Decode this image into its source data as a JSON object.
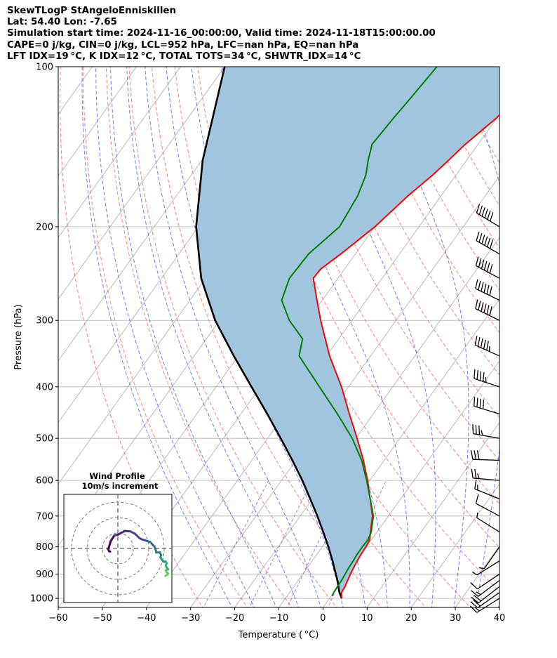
{
  "header": {
    "title": "SkewTLogP StAngeloEnniskillen",
    "location": "Lat: 54.40   Lon: -7.65",
    "times": "Simulation start time: 2024-11-16_00:00:00, Valid time: 2024-11-18T15:00:00.00",
    "parcel": "CAPE=0 j/kg, CIN=0 j/kg, LCL=952 hPa, LFC=nan hPa, EQ=nan hPa",
    "indices": "LFT IDX=19 °C, K IDX=12 °C, TOTAL TOTS=34 °C, SHWTR_IDX=14 °C"
  },
  "colors": {
    "temperature": "#ff0000",
    "dewpoint": "#008000",
    "parcel": "#000000",
    "cape_fill": "#a2c5df",
    "isotherm": "#aaaaaa",
    "dry_adiabat": "#ff5555",
    "moist_adiabat": "#3344ff",
    "mixing_ratio": "#9933cc"
  },
  "chart_data": [
    {
      "type": "line",
      "subtype": "skew-T log-P",
      "xlabel": "Temperature ( °C)",
      "ylabel": "Pressure (hPa)",
      "xlim": [
        -60,
        40
      ],
      "ylim": [
        1040,
        100
      ],
      "y_scale": "log",
      "grid": true,
      "x_ticks": [
        -60,
        -50,
        -40,
        -30,
        -20,
        -10,
        0,
        10,
        20,
        30,
        40
      ],
      "x_tick_labels": [
        "−60",
        "−50",
        "−40",
        "−30",
        "−20",
        "−10",
        "0",
        "10",
        "20",
        "30",
        "40"
      ],
      "y_ticks": [
        100,
        200,
        300,
        400,
        500,
        600,
        700,
        800,
        900,
        1000
      ],
      "y_tick_labels": [
        "100",
        "200",
        "300",
        "400",
        "500",
        "600",
        "700",
        "800",
        "900",
        "1000"
      ],
      "series": [
        {
          "key": "temperature",
          "points": [
            [
              1000,
              2.8
            ],
            [
              975,
              1.8
            ],
            [
              950,
              1.6
            ],
            [
              925,
              1.2
            ],
            [
              900,
              0.8
            ],
            [
              875,
              0.5
            ],
            [
              850,
              0.2
            ],
            [
              825,
              0
            ],
            [
              800,
              -0.1
            ],
            [
              775,
              -0.4
            ],
            [
              750,
              -1.5
            ],
            [
              700,
              -3.6
            ],
            [
              650,
              -6.9
            ],
            [
              600,
              -10.5
            ],
            [
              550,
              -14.7
            ],
            [
              500,
              -19.7
            ],
            [
              450,
              -25.4
            ],
            [
              400,
              -31.6
            ],
            [
              350,
              -39.3
            ],
            [
              300,
              -47.1
            ],
            [
              275,
              -51.2
            ],
            [
              250,
              -55.6
            ],
            [
              240,
              -55.4
            ],
            [
              225,
              -53.3
            ],
            [
              200,
              -50.0
            ],
            [
              175,
              -47.5
            ],
            [
              160,
              -45.3
            ],
            [
              150,
              -44.1
            ],
            [
              140,
              -42.9
            ],
            [
              125,
              -40.1
            ],
            [
              115,
              -38.9
            ],
            [
              100,
              -36.7
            ]
          ]
        },
        {
          "key": "dewpoint",
          "points": [
            [
              990,
              0.2
            ],
            [
              975,
              0
            ],
            [
              950,
              -0.1
            ],
            [
              925,
              -0.2
            ],
            [
              900,
              -0.4
            ],
            [
              875,
              -0.6
            ],
            [
              850,
              -0.7
            ],
            [
              825,
              -0.9
            ],
            [
              800,
              -0.9
            ],
            [
              775,
              -0.8
            ],
            [
              750,
              -1.3
            ],
            [
              700,
              -3.4
            ],
            [
              650,
              -6.9
            ],
            [
              600,
              -10.7
            ],
            [
              550,
              -15.1
            ],
            [
              500,
              -20.8
            ],
            [
              450,
              -28.1
            ],
            [
              400,
              -36.6
            ],
            [
              350,
              -46.2
            ],
            [
              325,
              -48.2
            ],
            [
              300,
              -54.2
            ],
            [
              275,
              -59.2
            ],
            [
              250,
              -61.0
            ],
            [
              225,
              -60.6
            ],
            [
              200,
              -58.0
            ],
            [
              175,
              -58.9
            ],
            [
              160,
              -60.4
            ],
            [
              150,
              -62.3
            ],
            [
              140,
              -64.0
            ],
            [
              125,
              -63.4
            ],
            [
              115,
              -62.8
            ],
            [
              100,
              -61.9
            ]
          ]
        },
        {
          "key": "parcel",
          "points": [
            [
              1000,
              2.8
            ],
            [
              975,
              1.3
            ],
            [
              952,
              0.2
            ],
            [
              925,
              -1.1
            ],
            [
              900,
              -2.5
            ],
            [
              850,
              -5.4
            ],
            [
              800,
              -8.6
            ],
            [
              750,
              -12.2
            ],
            [
              700,
              -16.1
            ],
            [
              650,
              -20.5
            ],
            [
              600,
              -25.3
            ],
            [
              550,
              -30.8
            ],
            [
              500,
              -37.0
            ],
            [
              450,
              -44.0
            ],
            [
              400,
              -52.0
            ],
            [
              350,
              -61.0
            ],
            [
              300,
              -71.0
            ],
            [
              250,
              -81.0
            ],
            [
              200,
              -90.5
            ],
            [
              150,
              -99.8
            ],
            [
              100,
              -110.0
            ]
          ]
        }
      ],
      "wind_barbs": [
        {
          "p": 1000,
          "dir": 238,
          "kt": 17
        },
        {
          "p": 975,
          "dir": 235,
          "kt": 20
        },
        {
          "p": 950,
          "dir": 232,
          "kt": 20
        },
        {
          "p": 925,
          "dir": 233,
          "kt": 18
        },
        {
          "p": 900,
          "dir": 236,
          "kt": 12
        },
        {
          "p": 850,
          "dir": 238,
          "kt": 8
        },
        {
          "p": 800,
          "dir": 215,
          "kt": 5
        },
        {
          "p": 750,
          "dir": 302,
          "kt": 6
        },
        {
          "p": 700,
          "dir": 298,
          "kt": 10
        },
        {
          "p": 650,
          "dir": 292,
          "kt": 15
        },
        {
          "p": 600,
          "dir": 275,
          "kt": 25
        },
        {
          "p": 550,
          "dir": 272,
          "kt": 30
        },
        {
          "p": 500,
          "dir": 280,
          "kt": 35
        },
        {
          "p": 450,
          "dir": 287,
          "kt": 40
        },
        {
          "p": 400,
          "dir": 288,
          "kt": 45
        },
        {
          "p": 350,
          "dir": 294,
          "kt": 55
        },
        {
          "p": 300,
          "dir": 296,
          "kt": 60
        },
        {
          "p": 275,
          "dir": 296,
          "kt": 60
        },
        {
          "p": 250,
          "dir": 298,
          "kt": 60
        },
        {
          "p": 225,
          "dir": 300,
          "kt": 60
        },
        {
          "p": 200,
          "dir": 301,
          "kt": 60
        }
      ]
    },
    {
      "type": "scatter",
      "subtype": "hodograph",
      "title": "Wind Profile",
      "subtitle": "10m/s increment",
      "rings_ms": [
        10,
        20,
        30
      ],
      "range_ms": [
        -35,
        35
      ],
      "colormap": "viridis",
      "points": [
        [
          -5,
          -2
        ],
        [
          -5.7,
          -1.8
        ],
        [
          -6.2,
          -0.5
        ],
        [
          -4.6,
          4.8
        ],
        [
          -2.2,
          8.5
        ],
        [
          0,
          8.8
        ],
        [
          2,
          10
        ],
        [
          4.5,
          11.3
        ],
        [
          8.2,
          11
        ],
        [
          11.2,
          9.4
        ],
        [
          13.9,
          6.8
        ],
        [
          15.3,
          6
        ],
        [
          18.4,
          5
        ],
        [
          20.8,
          4.3
        ],
        [
          22.4,
          2.6
        ],
        [
          23.8,
          1.1
        ],
        [
          24.5,
          -0.8
        ],
        [
          24.9,
          -2.6
        ],
        [
          27.2,
          -2.6
        ],
        [
          28,
          -4.3
        ],
        [
          27.6,
          -5.7
        ],
        [
          28.4,
          -7
        ],
        [
          29.5,
          -8.5
        ],
        [
          31,
          -8.5
        ],
        [
          31.7,
          -9.6
        ],
        [
          31,
          -11
        ],
        [
          31.6,
          -12.4
        ],
        [
          32.6,
          -13.5
        ],
        [
          30.9,
          -14.3
        ],
        [
          31.6,
          -15.4
        ],
        [
          32.6,
          -16.3
        ],
        [
          31.5,
          -17.3
        ],
        [
          30.8,
          -17.8
        ]
      ]
    }
  ]
}
